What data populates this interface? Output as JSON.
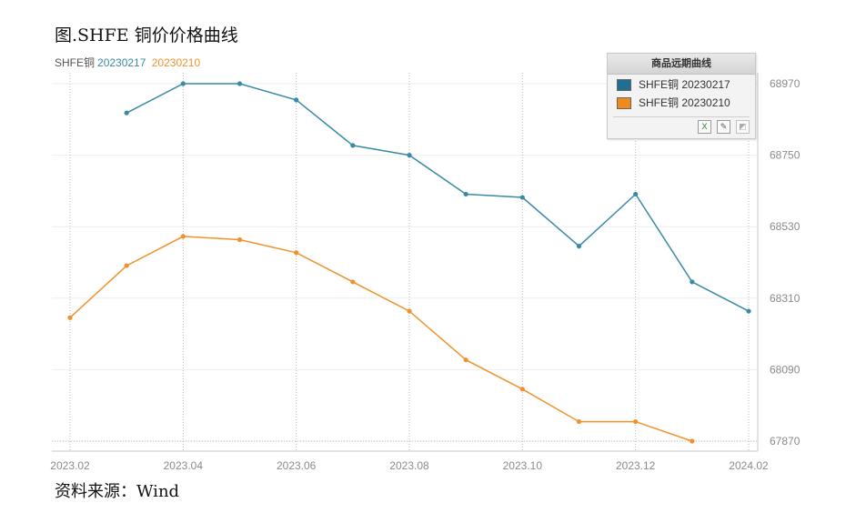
{
  "title": "图.SHFE 铜价价格曲线",
  "source": "资料来源：Wind",
  "top_legend": {
    "prefix": "SHFE铜",
    "entries": [
      "20230217",
      "20230210"
    ]
  },
  "legend_box": {
    "header": "商品远期曲线",
    "entries": [
      "SHFE铜 20230217",
      "SHFE铜 20230210"
    ],
    "tools": [
      "excel-export-icon",
      "chart-edit-icon",
      "chart-disabled-icon"
    ]
  },
  "colors": {
    "series_1": "#3a8aa6",
    "series_2": "#f0922b",
    "legend_swatch_1": "#1f6f94",
    "legend_swatch_2": "#f08a1e"
  },
  "chart_data": {
    "type": "line",
    "x_ticks": [
      "2023.02",
      "2023.04",
      "2023.06",
      "2023.08",
      "2023.10",
      "2023.12",
      "2024.02"
    ],
    "y_ticks": [
      67870,
      68090,
      68310,
      68530,
      68750,
      68970
    ],
    "ylim": [
      67870,
      68970
    ],
    "y_axis_position": "right",
    "grid": true,
    "series": [
      {
        "name": "SHFE铜 20230217",
        "x": [
          1,
          2,
          3,
          4,
          5,
          6,
          7,
          8,
          9,
          10,
          11,
          12
        ],
        "y": [
          68880,
          68970,
          68970,
          68920,
          68780,
          68750,
          68630,
          68620,
          68470,
          68630,
          68360,
          68270
        ]
      },
      {
        "name": "SHFE铜 20230210",
        "x": [
          0,
          1,
          2,
          3,
          4,
          5,
          6,
          7,
          8,
          9,
          10,
          11
        ],
        "y": [
          68250,
          68410,
          68500,
          68490,
          68450,
          68360,
          68270,
          68120,
          68030,
          67930,
          67930,
          67870
        ]
      }
    ]
  }
}
